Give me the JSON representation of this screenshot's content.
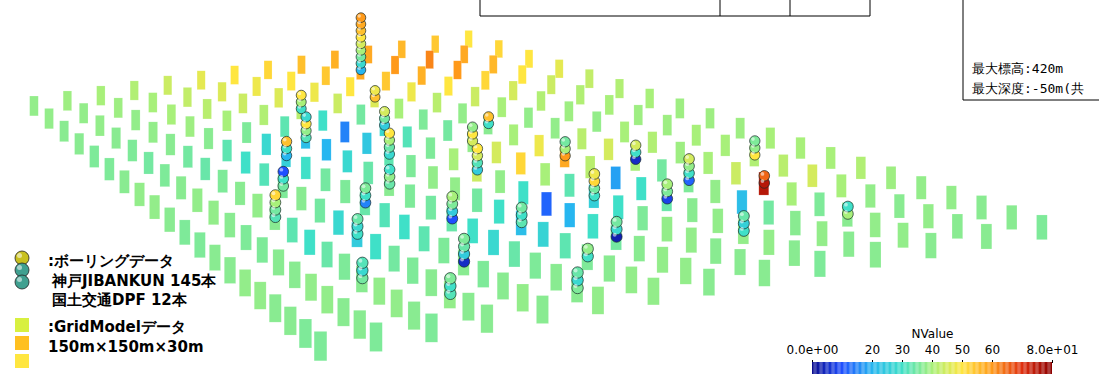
{
  "chart_data": {
    "type": "grid_model_3d",
    "texts": {
      "legend_borehole": ":ボーリングデータ",
      "borehole_sources": [
        "神戸JIBANKUN 145本",
        "国土交通DPF 12本"
      ],
      "legend_grid": ":GridModelデータ",
      "grid_size": "150m×150m×30m",
      "info": [
        "最大標高:420m",
        "最大深度:-50m(共"
      ]
    },
    "colorbar": {
      "title": "NValue",
      "range": [
        0,
        80
      ],
      "ticks": [
        {
          "value": 0,
          "label": "0.0e+00"
        },
        20,
        30,
        40,
        50,
        60,
        {
          "value": 80,
          "label": "8.0e+01"
        }
      ]
    },
    "cells": [
      [
        38,
        38,
        37,
        37,
        36,
        36,
        37,
        38,
        38,
        37,
        36,
        36,
        37,
        37,
        38,
        38,
        37,
        37,
        36,
        36
      ],
      [
        39,
        38,
        38,
        37,
        36,
        35,
        36,
        37,
        38,
        38,
        37,
        36,
        36,
        37,
        37,
        38,
        38,
        37,
        37,
        36
      ],
      [
        40,
        39,
        38,
        38,
        37,
        35,
        34,
        36,
        37,
        38,
        37,
        33,
        30,
        34,
        36,
        37,
        38,
        38,
        37,
        36
      ],
      [
        41,
        40,
        40,
        39,
        37,
        33,
        30,
        32,
        36,
        37,
        35,
        28,
        25,
        30,
        35,
        36,
        37,
        38,
        37,
        37
      ],
      [
        44,
        43,
        42,
        40,
        36,
        28,
        26,
        30,
        35,
        36,
        34,
        32,
        30,
        33,
        36,
        37,
        36,
        37,
        38,
        37
      ],
      [
        47,
        46,
        44,
        41,
        33,
        22,
        20,
        28,
        34,
        37,
        36,
        35,
        34,
        30,
        28,
        34,
        36,
        37,
        37,
        38
      ],
      [
        50,
        48,
        46,
        42,
        30,
        15,
        24,
        33,
        36,
        38,
        38,
        35,
        30,
        22,
        27,
        33,
        36,
        37,
        38,
        38
      ],
      [
        52,
        50,
        48,
        44,
        35,
        28,
        32,
        36,
        40,
        44,
        38,
        30,
        12,
        20,
        30,
        35,
        37,
        38,
        38,
        37
      ],
      [
        55,
        54,
        50,
        46,
        40,
        36,
        35,
        38,
        45,
        52,
        40,
        33,
        26,
        30,
        36,
        38,
        38,
        37,
        37,
        37
      ],
      [
        57,
        58,
        54,
        48,
        42,
        38,
        37,
        40,
        48,
        58,
        42,
        18,
        30,
        34,
        37,
        38,
        38,
        38,
        37,
        36
      ],
      [
        58,
        60,
        57,
        50,
        44,
        40,
        38,
        38,
        42,
        45,
        40,
        35,
        36,
        38,
        22,
        35,
        37,
        38,
        37,
        37
      ],
      [
        56,
        62,
        60,
        52,
        45,
        41,
        39,
        38,
        40,
        41,
        39,
        40,
        44,
        75,
        40,
        36,
        37,
        38,
        38,
        37
      ],
      [
        54,
        58,
        56,
        50,
        44,
        41,
        40,
        39,
        39,
        40,
        40,
        41,
        42,
        45,
        40,
        38,
        37,
        38,
        37,
        37
      ],
      [
        50,
        52,
        50,
        47,
        43,
        41,
        40,
        39,
        39,
        39,
        40,
        40,
        40,
        41,
        39,
        38,
        38,
        37,
        37,
        36
      ]
    ],
    "boreholes": [
      {
        "row": 9,
        "col": 1,
        "nvalues": [
          20,
          28,
          35,
          40,
          45,
          50,
          55,
          58,
          60
        ]
      },
      {
        "row": 8,
        "col": 3,
        "nvalues": [
          55,
          48
        ]
      },
      {
        "row": 6,
        "col": 3,
        "nvalues": [
          30,
          40,
          50
        ]
      },
      {
        "row": 7,
        "col": 5,
        "nvalues": [
          25,
          35,
          45
        ]
      },
      {
        "row": 5,
        "col": 5,
        "nvalues": [
          32,
          38,
          50,
          28
        ]
      },
      {
        "row": 4,
        "col": 6,
        "nvalues": [
          20,
          30,
          55
        ]
      },
      {
        "row": 3,
        "col": 8,
        "nvalues": [
          35,
          30,
          10
        ]
      },
      {
        "row": 6,
        "col": 7,
        "nvalues": [
          28,
          34,
          40,
          50
        ]
      },
      {
        "row": 8,
        "col": 7,
        "nvalues": [
          45,
          50,
          38
        ]
      },
      {
        "row": 9,
        "col": 6,
        "nvalues": [
          30,
          55
        ]
      },
      {
        "row": 2,
        "col": 10,
        "nvalues": [
          32,
          35,
          40,
          52
        ]
      },
      {
        "row": 4,
        "col": 10,
        "nvalues": [
          15,
          30,
          36
        ]
      },
      {
        "row": 5,
        "col": 9,
        "nvalues": [
          34,
          38,
          30
        ]
      },
      {
        "row": 7,
        "col": 9,
        "nvalues": [
          25,
          32,
          45,
          50
        ]
      },
      {
        "row": 9,
        "col": 9,
        "nvalues": [
          60,
          40,
          35
        ]
      },
      {
        "row": 10,
        "col": 10,
        "nvalues": [
          5,
          30,
          45
        ]
      },
      {
        "row": 3,
        "col": 12,
        "nvalues": [
          30,
          28,
          34
        ]
      },
      {
        "row": 5,
        "col": 12,
        "nvalues": [
          10,
          25,
          36,
          40
        ]
      },
      {
        "row": 6,
        "col": 13,
        "nvalues": [
          33,
          30,
          35
        ]
      },
      {
        "row": 8,
        "col": 12,
        "nvalues": [
          30,
          35,
          52,
          48
        ]
      },
      {
        "row": 9,
        "col": 13,
        "nvalues": [
          8,
          36,
          40
        ]
      },
      {
        "row": 10,
        "col": 12,
        "nvalues": [
          12,
          30,
          38,
          45
        ]
      },
      {
        "row": 11,
        "col": 13,
        "nvalues": [
          75,
          65
        ]
      },
      {
        "row": 12,
        "col": 11,
        "nvalues": [
          50,
          38,
          36
        ]
      },
      {
        "row": 2,
        "col": 15,
        "nvalues": [
          35,
          28,
          32
        ]
      },
      {
        "row": 4,
        "col": 15,
        "nvalues": [
          5,
          25,
          34,
          36
        ]
      },
      {
        "row": 6,
        "col": 16,
        "nvalues": [
          30,
          38
        ]
      },
      {
        "row": 7,
        "col": 15,
        "nvalues": [
          3,
          28,
          35
        ]
      },
      {
        "row": 9,
        "col": 16,
        "nvalues": [
          30,
          26,
          34
        ]
      },
      {
        "row": 11,
        "col": 16,
        "nvalues": [
          40,
          30
        ]
      },
      {
        "row": 3,
        "col": 17,
        "nvalues": [
          32,
          30,
          36
        ]
      },
      {
        "row": 5,
        "col": 18,
        "nvalues": [
          36,
          28,
          34
        ]
      }
    ]
  }
}
